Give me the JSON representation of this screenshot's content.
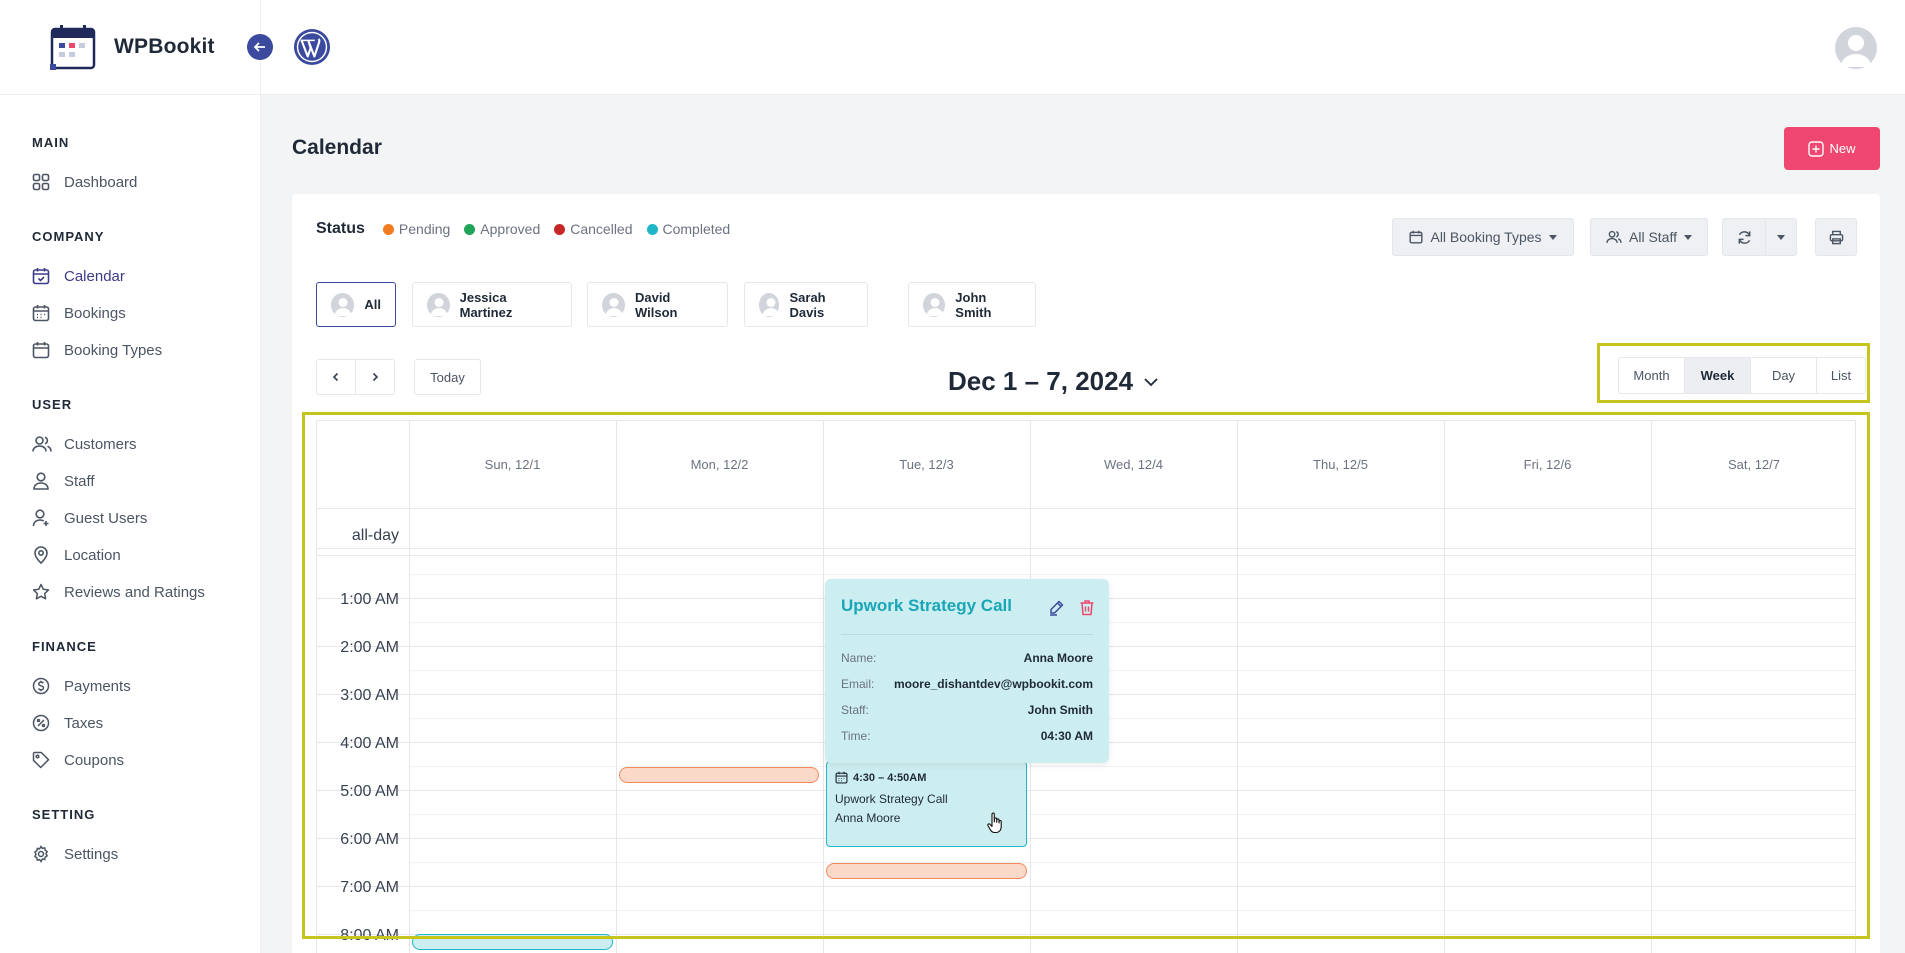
{
  "brand": {
    "name": "WPBookit"
  },
  "sidebar": {
    "sections": [
      {
        "title": "MAIN",
        "items": [
          {
            "label": "Dashboard",
            "icon": "grid-icon"
          }
        ]
      },
      {
        "title": "COMPANY",
        "items": [
          {
            "label": "Calendar",
            "icon": "calendar-check-icon",
            "active": true
          },
          {
            "label": "Bookings",
            "icon": "calendar-icon"
          },
          {
            "label": "Booking Types",
            "icon": "calendar-blank-icon"
          }
        ]
      },
      {
        "title": "USER",
        "items": [
          {
            "label": "Customers",
            "icon": "users-icon"
          },
          {
            "label": "Staff",
            "icon": "user-icon"
          },
          {
            "label": "Guest Users",
            "icon": "guest-user-icon"
          },
          {
            "label": "Location",
            "icon": "map-pin-icon"
          },
          {
            "label": "Reviews and Ratings",
            "icon": "star-icon"
          }
        ]
      },
      {
        "title": "FINANCE",
        "items": [
          {
            "label": "Payments",
            "icon": "dollar-circle-icon"
          },
          {
            "label": "Taxes",
            "icon": "percent-badge-icon"
          },
          {
            "label": "Coupons",
            "icon": "tag-icon"
          }
        ]
      },
      {
        "title": "SETTING",
        "items": [
          {
            "label": "Settings",
            "icon": "gear-icon"
          }
        ]
      }
    ]
  },
  "page": {
    "title": "Calendar",
    "new_label": "New"
  },
  "status": {
    "title": "Status",
    "legend": [
      {
        "label": "Pending",
        "color": "#f47c20"
      },
      {
        "label": "Approved",
        "color": "#22a35a"
      },
      {
        "label": "Cancelled",
        "color": "#c62828"
      },
      {
        "label": "Completed",
        "color": "#1fb6c8"
      }
    ]
  },
  "filters": {
    "booking_types": "All Booking Types",
    "staff": "All Staff"
  },
  "staff_tabs": [
    {
      "label": "All",
      "active": true
    },
    {
      "label": "Jessica Martinez"
    },
    {
      "label": "David Wilson"
    },
    {
      "label": "Sarah Davis"
    },
    {
      "label": "John Smith"
    }
  ],
  "calendar": {
    "today_label": "Today",
    "range_title": "Dec 1 – 7, 2024",
    "views": [
      {
        "label": "Month"
      },
      {
        "label": "Week",
        "active": true
      },
      {
        "label": "Day"
      },
      {
        "label": "List"
      }
    ],
    "days": [
      "Sun, 12/1",
      "Mon, 12/2",
      "Tue, 12/3",
      "Wed, 12/4",
      "Thu, 12/5",
      "Fri, 12/6",
      "Sat, 12/7"
    ],
    "all_day_label": "all-day",
    "times": [
      "1:00 AM",
      "2:00 AM",
      "3:00 AM",
      "4:00 AM",
      "5:00 AM",
      "6:00 AM",
      "7:00 AM",
      "8:00 AM"
    ],
    "event": {
      "time": "4:30 – 4:50AM",
      "title": "Upwork Strategy Call",
      "customer": "Anna Moore"
    },
    "popover": {
      "title": "Upwork Strategy Call",
      "rows": [
        {
          "key": "Name:",
          "value": "Anna Moore"
        },
        {
          "key": "Email:",
          "value": "moore_dishantdev@wpbookit.com"
        },
        {
          "key": "Staff:",
          "value": "John Smith"
        },
        {
          "key": "Time:",
          "value": "04:30 AM"
        }
      ]
    }
  }
}
